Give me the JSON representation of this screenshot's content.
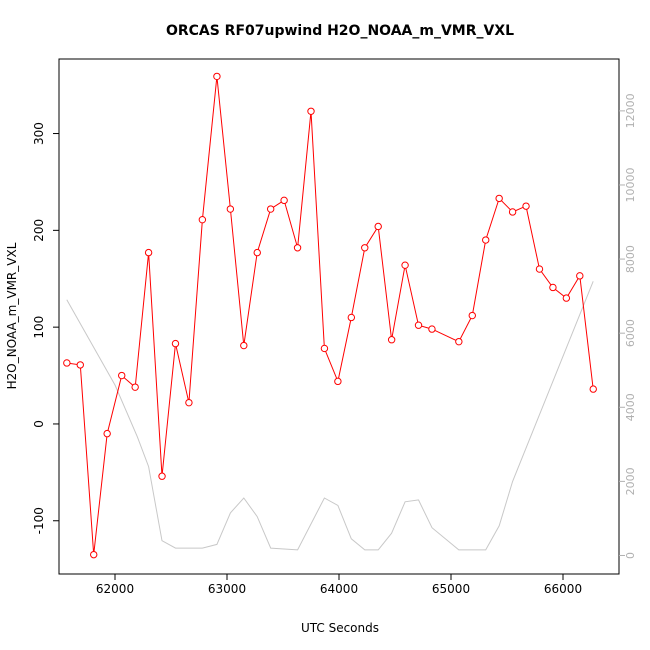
{
  "chart_data": {
    "type": "line",
    "title": "ORCAS RF07upwind H2O_NOAA_m_VMR_VXL",
    "xlabel": "UTC Seconds",
    "ylabel": "H2O_NOAA_m_VMR_VXL",
    "xlim": [
      61500,
      66500
    ],
    "ylim": [
      -155,
      377
    ],
    "y2lim": [
      -500,
      13400
    ],
    "x_ticks": [
      62000,
      63000,
      64000,
      65000,
      66000
    ],
    "y_ticks": [
      -100,
      0,
      100,
      200,
      300
    ],
    "y2_ticks": [
      0,
      2000,
      4000,
      6000,
      8000,
      10000,
      12000
    ],
    "grid": false,
    "series": [
      {
        "color": "#ff0000",
        "axis": "left",
        "markers": true,
        "points": [
          [
            61570,
            63
          ],
          [
            61690,
            61
          ],
          [
            61810,
            -135
          ],
          [
            61930,
            -10
          ],
          [
            62060,
            50
          ],
          [
            62180,
            38
          ],
          [
            62300,
            177
          ],
          [
            62420,
            -54
          ],
          [
            62540,
            83
          ],
          [
            62660,
            22
          ],
          [
            62780,
            211
          ],
          [
            62910,
            359
          ],
          [
            63030,
            222
          ],
          [
            63150,
            81
          ],
          [
            63270,
            177
          ],
          [
            63390,
            222
          ],
          [
            63510,
            231
          ],
          [
            63630,
            182
          ],
          [
            63750,
            323
          ],
          [
            63870,
            78
          ],
          [
            63990,
            44
          ],
          [
            64110,
            110
          ],
          [
            64230,
            182
          ],
          [
            64350,
            204
          ],
          [
            64470,
            87
          ],
          [
            64590,
            164
          ],
          [
            64710,
            102
          ],
          [
            64830,
            98
          ],
          [
            65070,
            85
          ],
          [
            65190,
            112
          ],
          [
            65310,
            190
          ],
          [
            65430,
            233
          ],
          [
            65550,
            219
          ],
          [
            65670,
            225
          ],
          [
            65790,
            160
          ],
          [
            65910,
            141
          ],
          [
            66030,
            130
          ],
          [
            66150,
            153
          ],
          [
            66270,
            36
          ]
        ]
      },
      {
        "color": "#c8c8c8",
        "axis": "right",
        "markers": false,
        "points": [
          [
            61570,
            6900
          ],
          [
            62000,
            4600
          ],
          [
            62200,
            3200
          ],
          [
            62300,
            2400
          ],
          [
            62420,
            400
          ],
          [
            62540,
            200
          ],
          [
            62660,
            200
          ],
          [
            62780,
            200
          ],
          [
            62910,
            300
          ],
          [
            63030,
            1150
          ],
          [
            63150,
            1550
          ],
          [
            63270,
            1050
          ],
          [
            63390,
            200
          ],
          [
            63630,
            150
          ],
          [
            63870,
            1550
          ],
          [
            63990,
            1350
          ],
          [
            64110,
            450
          ],
          [
            64230,
            150
          ],
          [
            64350,
            150
          ],
          [
            64470,
            600
          ],
          [
            64590,
            1450
          ],
          [
            64710,
            1500
          ],
          [
            64830,
            750
          ],
          [
            65070,
            150
          ],
          [
            65310,
            150
          ],
          [
            65430,
            800
          ],
          [
            65550,
            2000
          ],
          [
            66270,
            7400
          ]
        ]
      }
    ]
  }
}
